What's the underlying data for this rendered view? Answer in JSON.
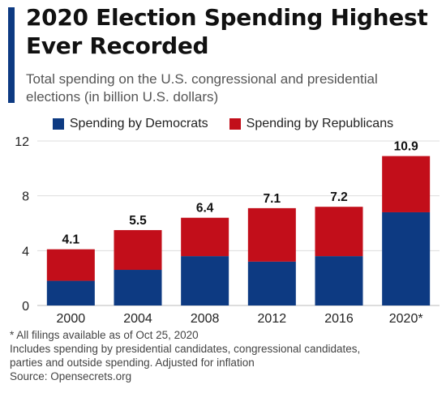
{
  "header": {
    "title_line1": "2020 Election Spending Highest",
    "title_line2": "Ever Recorded",
    "subtitle_line1": "Total spending on the U.S. congressional and presidential",
    "subtitle_line2": "elections (in billion U.S. dollars)"
  },
  "colors": {
    "democrats": "#0d3a82",
    "republicans": "#c20e1a",
    "accent": "#0d3a82"
  },
  "chart_data": {
    "type": "bar",
    "stacked": true,
    "categories": [
      "2000",
      "2004",
      "2008",
      "2012",
      "2016",
      "2020*"
    ],
    "series": [
      {
        "name": "Spending by Democrats",
        "values": [
          1.8,
          2.6,
          3.6,
          3.2,
          3.6,
          6.8
        ]
      },
      {
        "name": "Spending by Republicans",
        "values": [
          2.3,
          2.9,
          2.8,
          3.9,
          3.6,
          4.1
        ]
      }
    ],
    "totals": [
      "4.1",
      "5.5",
      "6.4",
      "7.1",
      "7.2",
      "10.9"
    ],
    "yticks": [
      "0",
      "4",
      "8",
      "12"
    ],
    "ylim": [
      0,
      12
    ],
    "grid": true,
    "legend_position": "top",
    "title": "2020 Election Spending Highest Ever Recorded",
    "xlabel": "",
    "ylabel": ""
  },
  "footnotes": {
    "asterisk": "* All filings available as of Oct 25, 2020",
    "includes_line1": "Includes spending by presidential candidates, congressional candidates,",
    "includes_line2": "parties and outside spending. Adjusted for inflation",
    "source": "Source: Opensecrets.org"
  }
}
